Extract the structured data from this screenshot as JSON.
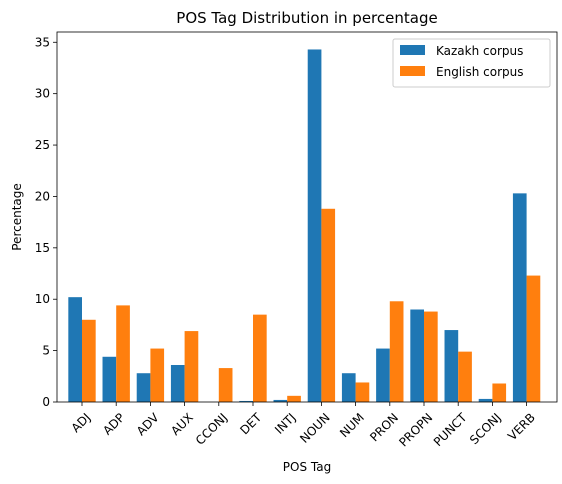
{
  "chart_data": {
    "type": "bar",
    "title": "POS Tag Distribution in percentage",
    "xlabel": "POS Tag",
    "ylabel": "Percentage",
    "categories": [
      "ADJ",
      "ADP",
      "ADV",
      "AUX",
      "CCONJ",
      "DET",
      "INTJ",
      "NOUN",
      "NUM",
      "PRON",
      "PROPN",
      "PUNCT",
      "SCONJ",
      "VERB"
    ],
    "series": [
      {
        "name": "Kazakh corpus",
        "color": "#1f77b4",
        "values": [
          10.2,
          4.4,
          2.8,
          3.6,
          0.0,
          0.1,
          0.2,
          34.3,
          2.8,
          5.2,
          9.0,
          7.0,
          0.3,
          20.3
        ]
      },
      {
        "name": "English corpus",
        "color": "#ff7f0e",
        "values": [
          8.0,
          9.4,
          5.2,
          6.9,
          3.3,
          8.5,
          0.6,
          18.8,
          1.9,
          9.8,
          8.8,
          4.9,
          1.8,
          12.3
        ]
      }
    ],
    "ylim": [
      0,
      36
    ],
    "yticks": [
      0,
      5,
      10,
      15,
      20,
      25,
      30,
      35
    ],
    "legend": "top-right",
    "grid": false
  }
}
